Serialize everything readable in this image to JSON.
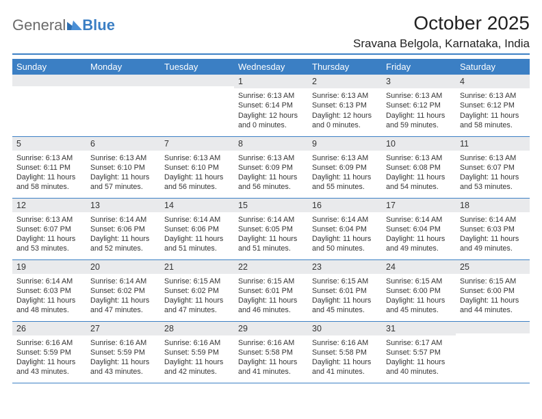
{
  "brand": {
    "part1": "General",
    "part2": "Blue"
  },
  "title": "October 2025",
  "location": "Sravana Belgola, Karnataka, India",
  "colors": {
    "header_bg": "#3b7fc4",
    "header_fg": "#ffffff",
    "daynum_bg": "#e9eaec",
    "rule": "#3b7fc4",
    "text": "#333333",
    "page_bg": "#ffffff"
  },
  "typography": {
    "title_fontsize": 28,
    "location_fontsize": 17,
    "dayheader_fontsize": 13,
    "daynum_fontsize": 12.5,
    "body_fontsize": 10.8
  },
  "day_headers": [
    "Sunday",
    "Monday",
    "Tuesday",
    "Wednesday",
    "Thursday",
    "Friday",
    "Saturday"
  ],
  "weeks": [
    [
      {
        "n": "",
        "sr": "",
        "ss": "",
        "dl": ""
      },
      {
        "n": "",
        "sr": "",
        "ss": "",
        "dl": ""
      },
      {
        "n": "",
        "sr": "",
        "ss": "",
        "dl": ""
      },
      {
        "n": "1",
        "sr": "Sunrise: 6:13 AM",
        "ss": "Sunset: 6:14 PM",
        "dl": "Daylight: 12 hours and 0 minutes."
      },
      {
        "n": "2",
        "sr": "Sunrise: 6:13 AM",
        "ss": "Sunset: 6:13 PM",
        "dl": "Daylight: 12 hours and 0 minutes."
      },
      {
        "n": "3",
        "sr": "Sunrise: 6:13 AM",
        "ss": "Sunset: 6:12 PM",
        "dl": "Daylight: 11 hours and 59 minutes."
      },
      {
        "n": "4",
        "sr": "Sunrise: 6:13 AM",
        "ss": "Sunset: 6:12 PM",
        "dl": "Daylight: 11 hours and 58 minutes."
      }
    ],
    [
      {
        "n": "5",
        "sr": "Sunrise: 6:13 AM",
        "ss": "Sunset: 6:11 PM",
        "dl": "Daylight: 11 hours and 58 minutes."
      },
      {
        "n": "6",
        "sr": "Sunrise: 6:13 AM",
        "ss": "Sunset: 6:10 PM",
        "dl": "Daylight: 11 hours and 57 minutes."
      },
      {
        "n": "7",
        "sr": "Sunrise: 6:13 AM",
        "ss": "Sunset: 6:10 PM",
        "dl": "Daylight: 11 hours and 56 minutes."
      },
      {
        "n": "8",
        "sr": "Sunrise: 6:13 AM",
        "ss": "Sunset: 6:09 PM",
        "dl": "Daylight: 11 hours and 56 minutes."
      },
      {
        "n": "9",
        "sr": "Sunrise: 6:13 AM",
        "ss": "Sunset: 6:09 PM",
        "dl": "Daylight: 11 hours and 55 minutes."
      },
      {
        "n": "10",
        "sr": "Sunrise: 6:13 AM",
        "ss": "Sunset: 6:08 PM",
        "dl": "Daylight: 11 hours and 54 minutes."
      },
      {
        "n": "11",
        "sr": "Sunrise: 6:13 AM",
        "ss": "Sunset: 6:07 PM",
        "dl": "Daylight: 11 hours and 53 minutes."
      }
    ],
    [
      {
        "n": "12",
        "sr": "Sunrise: 6:13 AM",
        "ss": "Sunset: 6:07 PM",
        "dl": "Daylight: 11 hours and 53 minutes."
      },
      {
        "n": "13",
        "sr": "Sunrise: 6:14 AM",
        "ss": "Sunset: 6:06 PM",
        "dl": "Daylight: 11 hours and 52 minutes."
      },
      {
        "n": "14",
        "sr": "Sunrise: 6:14 AM",
        "ss": "Sunset: 6:06 PM",
        "dl": "Daylight: 11 hours and 51 minutes."
      },
      {
        "n": "15",
        "sr": "Sunrise: 6:14 AM",
        "ss": "Sunset: 6:05 PM",
        "dl": "Daylight: 11 hours and 51 minutes."
      },
      {
        "n": "16",
        "sr": "Sunrise: 6:14 AM",
        "ss": "Sunset: 6:04 PM",
        "dl": "Daylight: 11 hours and 50 minutes."
      },
      {
        "n": "17",
        "sr": "Sunrise: 6:14 AM",
        "ss": "Sunset: 6:04 PM",
        "dl": "Daylight: 11 hours and 49 minutes."
      },
      {
        "n": "18",
        "sr": "Sunrise: 6:14 AM",
        "ss": "Sunset: 6:03 PM",
        "dl": "Daylight: 11 hours and 49 minutes."
      }
    ],
    [
      {
        "n": "19",
        "sr": "Sunrise: 6:14 AM",
        "ss": "Sunset: 6:03 PM",
        "dl": "Daylight: 11 hours and 48 minutes."
      },
      {
        "n": "20",
        "sr": "Sunrise: 6:14 AM",
        "ss": "Sunset: 6:02 PM",
        "dl": "Daylight: 11 hours and 47 minutes."
      },
      {
        "n": "21",
        "sr": "Sunrise: 6:15 AM",
        "ss": "Sunset: 6:02 PM",
        "dl": "Daylight: 11 hours and 47 minutes."
      },
      {
        "n": "22",
        "sr": "Sunrise: 6:15 AM",
        "ss": "Sunset: 6:01 PM",
        "dl": "Daylight: 11 hours and 46 minutes."
      },
      {
        "n": "23",
        "sr": "Sunrise: 6:15 AM",
        "ss": "Sunset: 6:01 PM",
        "dl": "Daylight: 11 hours and 45 minutes."
      },
      {
        "n": "24",
        "sr": "Sunrise: 6:15 AM",
        "ss": "Sunset: 6:00 PM",
        "dl": "Daylight: 11 hours and 45 minutes."
      },
      {
        "n": "25",
        "sr": "Sunrise: 6:15 AM",
        "ss": "Sunset: 6:00 PM",
        "dl": "Daylight: 11 hours and 44 minutes."
      }
    ],
    [
      {
        "n": "26",
        "sr": "Sunrise: 6:16 AM",
        "ss": "Sunset: 5:59 PM",
        "dl": "Daylight: 11 hours and 43 minutes."
      },
      {
        "n": "27",
        "sr": "Sunrise: 6:16 AM",
        "ss": "Sunset: 5:59 PM",
        "dl": "Daylight: 11 hours and 43 minutes."
      },
      {
        "n": "28",
        "sr": "Sunrise: 6:16 AM",
        "ss": "Sunset: 5:59 PM",
        "dl": "Daylight: 11 hours and 42 minutes."
      },
      {
        "n": "29",
        "sr": "Sunrise: 6:16 AM",
        "ss": "Sunset: 5:58 PM",
        "dl": "Daylight: 11 hours and 41 minutes."
      },
      {
        "n": "30",
        "sr": "Sunrise: 6:16 AM",
        "ss": "Sunset: 5:58 PM",
        "dl": "Daylight: 11 hours and 41 minutes."
      },
      {
        "n": "31",
        "sr": "Sunrise: 6:17 AM",
        "ss": "Sunset: 5:57 PM",
        "dl": "Daylight: 11 hours and 40 minutes."
      },
      {
        "n": "",
        "sr": "",
        "ss": "",
        "dl": ""
      }
    ]
  ]
}
